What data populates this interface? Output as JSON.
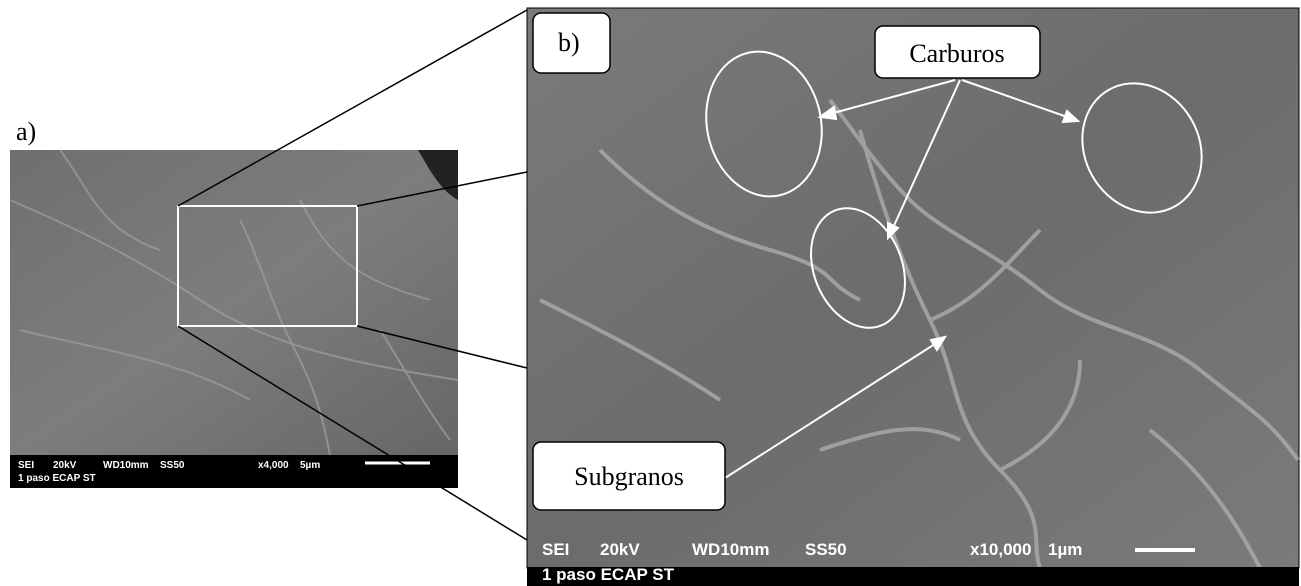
{
  "panels": [
    {
      "label": "a)",
      "info": [
        "SEI",
        "20kV",
        "WD10mm",
        "SS50",
        "x4,000",
        "5µm"
      ],
      "caption": "1 paso ECAP ST"
    },
    {
      "label": "b)",
      "info": [
        "SEI",
        "20kV",
        "WD10mm",
        "SS50",
        "x10,000",
        "1µm"
      ],
      "caption": "1 paso ECAP ST"
    }
  ],
  "callouts": [
    {
      "label": "Carburos"
    },
    {
      "label": "Subgranos"
    }
  ]
}
